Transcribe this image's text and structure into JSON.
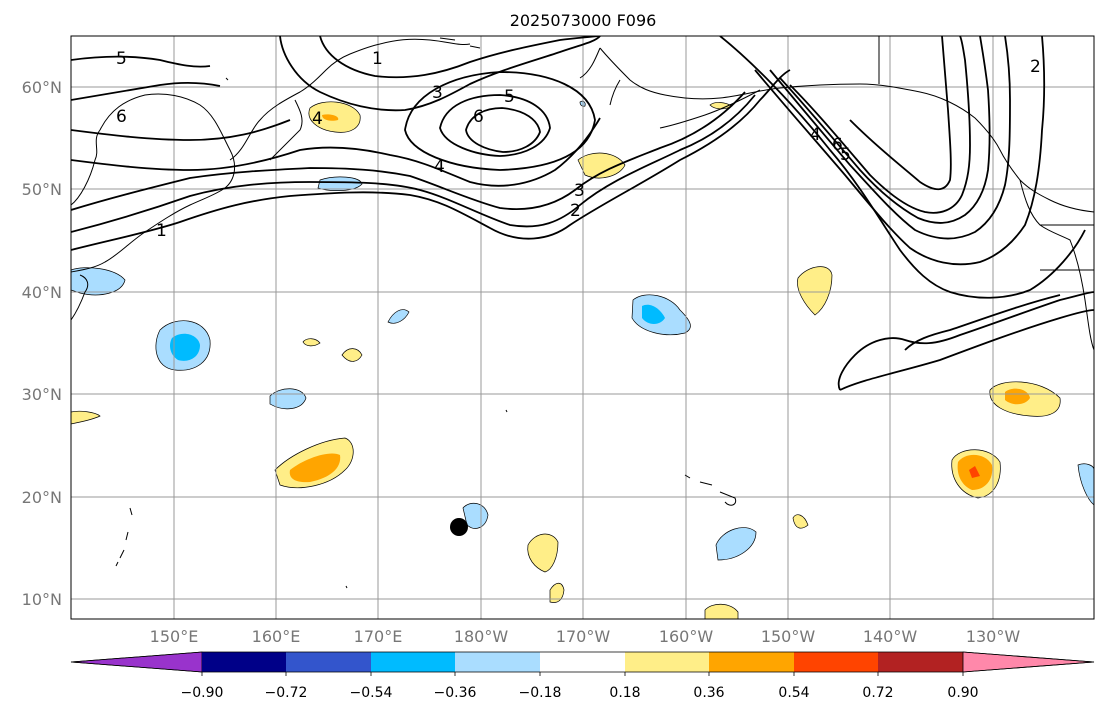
{
  "title": "2025073000 F096",
  "lat_labels": [
    "60°N",
    "50°N",
    "40°N",
    "30°N",
    "20°N",
    "10°N"
  ],
  "lon_labels": [
    "150°E",
    "160°E",
    "170°E",
    "180°W",
    "170°W",
    "160°W",
    "150°W",
    "140°W",
    "130°W"
  ],
  "colorbar": {
    "tick_labels": [
      "−0.90",
      "−0.72",
      "−0.54",
      "−0.36",
      "−0.18",
      "0.18",
      "0.36",
      "0.54",
      "0.72",
      "0.90"
    ],
    "colors": [
      "#9933cc",
      "#000088",
      "#3355cc",
      "#00bbff",
      "#aaddff",
      "#ffffff",
      "#ffee88",
      "#ffa500",
      "#ff4400",
      "#b22222",
      "#ff88aa"
    ]
  },
  "contour_labels": [
    "5",
    "6",
    "1",
    "4",
    "3",
    "5",
    "6",
    "4",
    "3",
    "2",
    "1",
    "4",
    "6",
    "5",
    "2"
  ],
  "colors": {
    "light_blue": "#aaddff",
    "cyan": "#00bbff",
    "light_yellow": "#ffee88",
    "orange": "#ffa500",
    "red_orange": "#ff4400"
  }
}
